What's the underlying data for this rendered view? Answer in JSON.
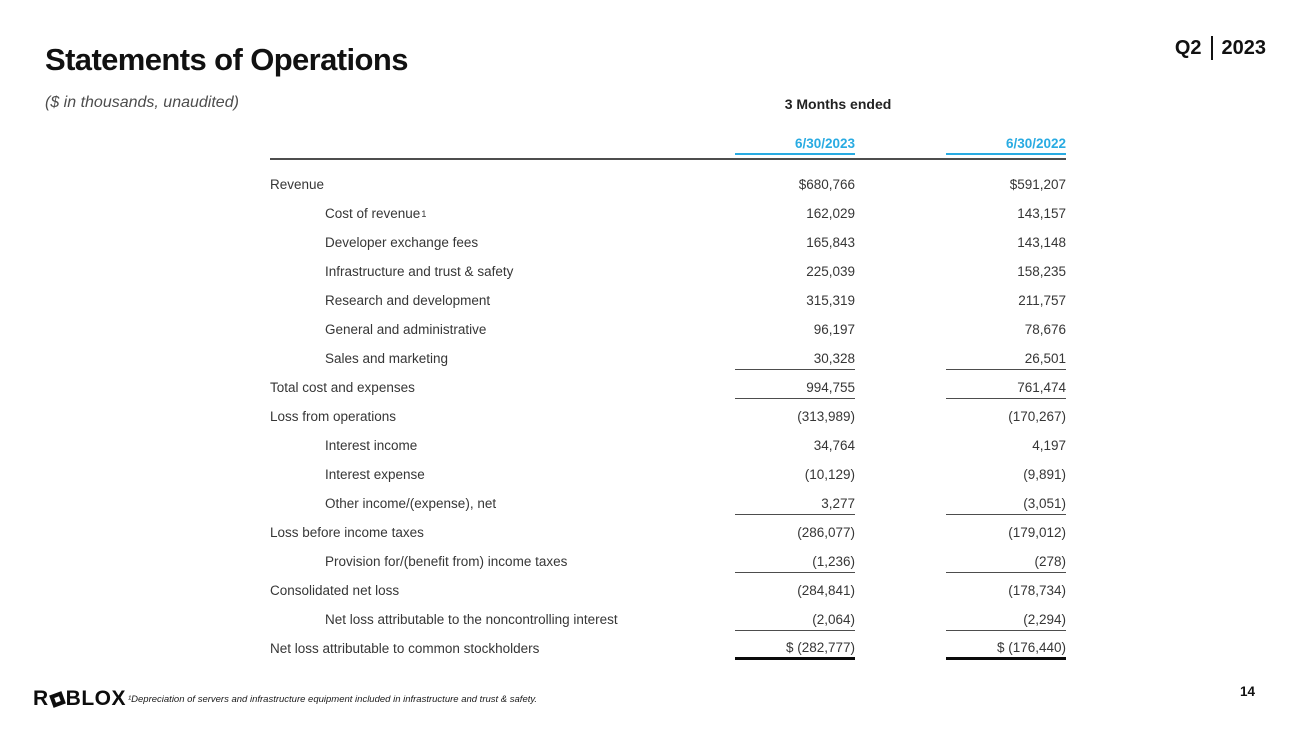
{
  "slide": {
    "title": "Statements of Operations",
    "subtitle": "($ in thousands, unaudited)",
    "quarter_label": "Q2",
    "year_label": "2023",
    "page_number": "14",
    "footnote": "¹Depreciation of servers and infrastructure equipment included in infrastructure and trust & safety.",
    "logo": {
      "part1": "R",
      "part2": "BLOX",
      "mark": "roblox-tilted-square"
    },
    "accent_color": "#29ABE2"
  },
  "table": {
    "group_header": "3 Months ended",
    "columns": [
      "6/30/2023",
      "6/30/2022"
    ],
    "rows": [
      {
        "label": "Revenue",
        "sup": "",
        "indent": false,
        "v1": "$680,766",
        "v2": "$591,207",
        "underline": "none"
      },
      {
        "label": "Cost of revenue",
        "sup": "1",
        "indent": true,
        "v1": "162,029",
        "v2": "143,157",
        "underline": "none"
      },
      {
        "label": "Developer exchange fees",
        "sup": "",
        "indent": true,
        "v1": "165,843",
        "v2": "143,148",
        "underline": "none"
      },
      {
        "label": "Infrastructure and trust & safety",
        "sup": "",
        "indent": true,
        "v1": "225,039",
        "v2": "158,235",
        "underline": "none"
      },
      {
        "label": "Research and development",
        "sup": "",
        "indent": true,
        "v1": "315,319",
        "v2": "211,757",
        "underline": "none"
      },
      {
        "label": "General and administrative",
        "sup": "",
        "indent": true,
        "v1": "96,197",
        "v2": "78,676",
        "underline": "none"
      },
      {
        "label": "Sales and marketing",
        "sup": "",
        "indent": true,
        "v1": "30,328",
        "v2": "26,501",
        "underline": "thin"
      },
      {
        "label": "Total cost and expenses",
        "sup": "",
        "indent": false,
        "v1": "994,755",
        "v2": "761,474",
        "underline": "thin"
      },
      {
        "label": "Loss from operations",
        "sup": "",
        "indent": false,
        "v1": "(313,989)",
        "v2": "(170,267)",
        "underline": "none"
      },
      {
        "label": "Interest income",
        "sup": "",
        "indent": true,
        "v1": "34,764",
        "v2": "4,197",
        "underline": "none"
      },
      {
        "label": "Interest expense",
        "sup": "",
        "indent": true,
        "v1": "(10,129)",
        "v2": "(9,891)",
        "underline": "none"
      },
      {
        "label": "Other income/(expense), net",
        "sup": "",
        "indent": true,
        "v1": "3,277",
        "v2": "(3,051)",
        "underline": "thin"
      },
      {
        "label": "Loss before income taxes",
        "sup": "",
        "indent": false,
        "v1": "(286,077)",
        "v2": "(179,012)",
        "underline": "none"
      },
      {
        "label": "Provision for/(benefit from) income taxes",
        "sup": "",
        "indent": true,
        "v1": "(1,236)",
        "v2": "(278)",
        "underline": "thin"
      },
      {
        "label": "Consolidated net loss",
        "sup": "",
        "indent": false,
        "v1": "(284,841)",
        "v2": "(178,734)",
        "underline": "none"
      },
      {
        "label": "Net loss attributable to the noncontrolling interest",
        "sup": "",
        "indent": true,
        "v1": "(2,064)",
        "v2": "(2,294)",
        "underline": "thin"
      },
      {
        "label": "Net loss attributable to common stockholders",
        "sup": "",
        "indent": false,
        "v1": "$ (282,777)",
        "v2": "$ (176,440)",
        "underline": "thick"
      }
    ]
  }
}
